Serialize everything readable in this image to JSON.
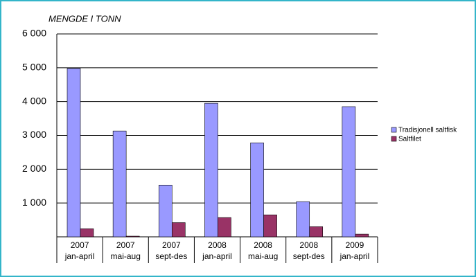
{
  "chart_data": {
    "type": "bar",
    "y_label": "MENGDE I TONN",
    "categories": [
      [
        "2007",
        "jan-april"
      ],
      [
        "2007",
        "mai-aug"
      ],
      [
        "2007",
        "sept-des"
      ],
      [
        "2008",
        "jan-april"
      ],
      [
        "2008",
        "mai-aug"
      ],
      [
        "2008",
        "sept-des"
      ],
      [
        "2009",
        "jan-april"
      ]
    ],
    "series": [
      {
        "name": "Tradisjonell saltfisk",
        "color": "#9999ff",
        "values": [
          4980,
          3130,
          1530,
          3950,
          2780,
          1040,
          3850
        ]
      },
      {
        "name": "Saltfilet",
        "color": "#993366",
        "values": [
          240,
          20,
          420,
          570,
          650,
          300,
          80
        ]
      }
    ],
    "ylim": [
      0,
      6000
    ],
    "yticks": [
      {
        "value": 1000,
        "label": "1 000"
      },
      {
        "value": 2000,
        "label": "2 000"
      },
      {
        "value": 3000,
        "label": "3 000"
      },
      {
        "value": 4000,
        "label": "4 000"
      },
      {
        "value": 5000,
        "label": "5 000"
      },
      {
        "value": 6000,
        "label": "6 000"
      }
    ],
    "grid": true,
    "legend": "right"
  }
}
